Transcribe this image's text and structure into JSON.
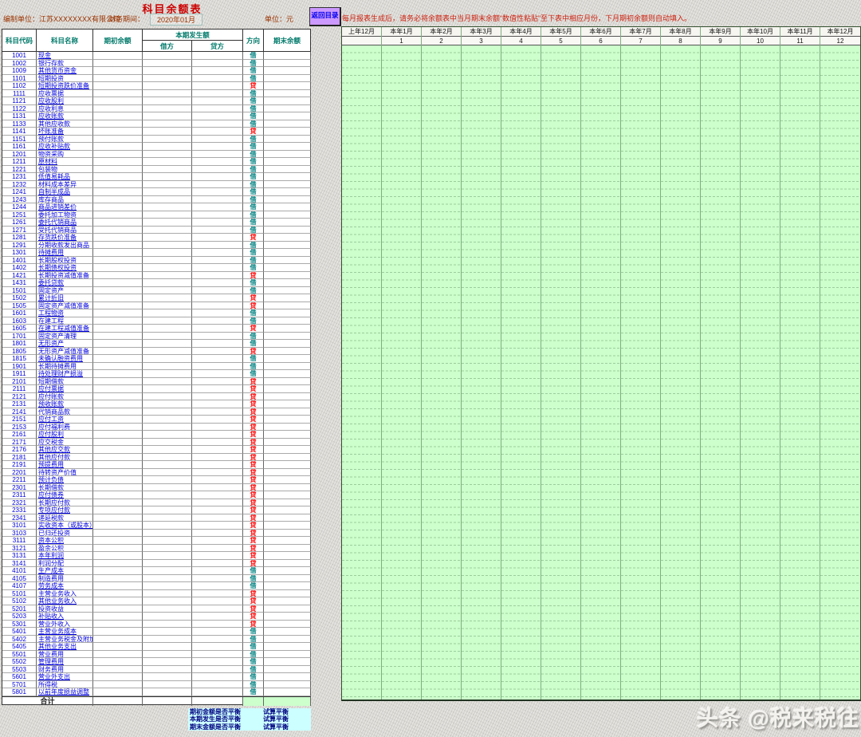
{
  "page_title": "科目余额表",
  "meta": {
    "prepared_label": "编制单位：",
    "company": "江苏XXXXXXXX有限公司",
    "period_label": "财务期间：",
    "period_value": "2020年01月",
    "unit_label": "单位：元"
  },
  "toolbar": {
    "back_button": "返回目录"
  },
  "note": "每月报表生成后，请务必将余额表中当月期末余额“数值性粘贴”至下表中相应月份，下月期初余额则自动填入。",
  "left_table": {
    "headers": {
      "code": "科目代码",
      "name": "科目名称",
      "opening": "期初余额",
      "current": "本期发生额",
      "debit": "借方",
      "credit": "贷方",
      "direction": "方向",
      "closing": "期末余额"
    },
    "total_label": "合计",
    "accounts": [
      {
        "code": "1001",
        "name": "现金",
        "dir": "借"
      },
      {
        "code": "1002",
        "name": "银行存款",
        "dir": "借"
      },
      {
        "code": "1009",
        "name": "其他货币资金",
        "dir": "借"
      },
      {
        "code": "1101",
        "name": "短期投资",
        "dir": "借"
      },
      {
        "code": "1102",
        "name": "短期投资跌价准备",
        "dir": "贷"
      },
      {
        "code": "1111",
        "name": "应收票据",
        "dir": "借"
      },
      {
        "code": "1121",
        "name": "应收股利",
        "dir": "借"
      },
      {
        "code": "1122",
        "name": "应收利息",
        "dir": "借"
      },
      {
        "code": "1131",
        "name": "应收账款",
        "dir": "借"
      },
      {
        "code": "1133",
        "name": "其他应收款",
        "dir": "借"
      },
      {
        "code": "1141",
        "name": "坏账准备",
        "dir": "贷"
      },
      {
        "code": "1151",
        "name": "预付账款",
        "dir": "借"
      },
      {
        "code": "1161",
        "name": "应收补贴款",
        "dir": "借"
      },
      {
        "code": "1201",
        "name": "物资采购",
        "dir": "借"
      },
      {
        "code": "1211",
        "name": "原材料",
        "dir": "借"
      },
      {
        "code": "1221",
        "name": "包装物",
        "dir": "借"
      },
      {
        "code": "1231",
        "name": "低值易耗品",
        "dir": "借"
      },
      {
        "code": "1232",
        "name": "材料成本差异",
        "dir": "借"
      },
      {
        "code": "1241",
        "name": "自制半成品",
        "dir": "借"
      },
      {
        "code": "1243",
        "name": "库存商品",
        "dir": "借"
      },
      {
        "code": "1244",
        "name": "商品进销差价",
        "dir": "借"
      },
      {
        "code": "1251",
        "name": "委托加工物资",
        "dir": "借"
      },
      {
        "code": "1261",
        "name": "委托代销商品",
        "dir": "借"
      },
      {
        "code": "1271",
        "name": "受托代销商品",
        "dir": "借"
      },
      {
        "code": "1281",
        "name": "存货跌价准备",
        "dir": "贷"
      },
      {
        "code": "1291",
        "name": "分期收款发出商品",
        "dir": "借"
      },
      {
        "code": "1301",
        "name": "待摊费用",
        "dir": "借"
      },
      {
        "code": "1401",
        "name": "长期股权投资",
        "dir": "借"
      },
      {
        "code": "1402",
        "name": "长期债权投资",
        "dir": "借"
      },
      {
        "code": "1421",
        "name": "长期投资减值准备",
        "dir": "贷"
      },
      {
        "code": "1431",
        "name": "委托贷款",
        "dir": "借"
      },
      {
        "code": "1501",
        "name": "固定资产",
        "dir": "借"
      },
      {
        "code": "1502",
        "name": "累计折旧",
        "dir": "贷"
      },
      {
        "code": "1505",
        "name": "固定资产减值准备",
        "dir": "贷"
      },
      {
        "code": "1601",
        "name": "工程物资",
        "dir": "借"
      },
      {
        "code": "1603",
        "name": "在建工程",
        "dir": "借"
      },
      {
        "code": "1605",
        "name": "在建工程减值准备",
        "dir": "贷"
      },
      {
        "code": "1701",
        "name": "固定资产清理",
        "dir": "借"
      },
      {
        "code": "1801",
        "name": "无形资产",
        "dir": "借"
      },
      {
        "code": "1805",
        "name": "无形资产减值准备",
        "dir": "贷"
      },
      {
        "code": "1815",
        "name": "未确认融资费用",
        "dir": "借"
      },
      {
        "code": "1901",
        "name": "长期待摊费用",
        "dir": "借"
      },
      {
        "code": "1911",
        "name": "待处理财产损溢",
        "dir": "借"
      },
      {
        "code": "2101",
        "name": "短期借款",
        "dir": "贷"
      },
      {
        "code": "2111",
        "name": "应付票据",
        "dir": "贷"
      },
      {
        "code": "2121",
        "name": "应付账款",
        "dir": "贷"
      },
      {
        "code": "2131",
        "name": "预收账款",
        "dir": "贷"
      },
      {
        "code": "2141",
        "name": "代销商品款",
        "dir": "贷"
      },
      {
        "code": "2151",
        "name": "应付工资",
        "dir": "贷"
      },
      {
        "code": "2153",
        "name": "应付福利费",
        "dir": "贷"
      },
      {
        "code": "2161",
        "name": "应付股利",
        "dir": "贷"
      },
      {
        "code": "2171",
        "name": "应交税金",
        "dir": "贷"
      },
      {
        "code": "2176",
        "name": "其他应交款",
        "dir": "贷"
      },
      {
        "code": "2181",
        "name": "其他应付款",
        "dir": "贷"
      },
      {
        "code": "2191",
        "name": "预提费用",
        "dir": "贷"
      },
      {
        "code": "2201",
        "name": "待转资产价值",
        "dir": "贷"
      },
      {
        "code": "2211",
        "name": "预计负债",
        "dir": "贷"
      },
      {
        "code": "2301",
        "name": "长期借款",
        "dir": "贷"
      },
      {
        "code": "2311",
        "name": "应付债券",
        "dir": "贷"
      },
      {
        "code": "2321",
        "name": "长期应付款",
        "dir": "贷"
      },
      {
        "code": "2331",
        "name": "专项应付款",
        "dir": "贷"
      },
      {
        "code": "2341",
        "name": "递延税款",
        "dir": "贷"
      },
      {
        "code": "3101",
        "name": "实收资本（或股本）",
        "dir": "贷"
      },
      {
        "code": "3103",
        "name": "已归还投资",
        "dir": "贷"
      },
      {
        "code": "3111",
        "name": "资本公积",
        "dir": "贷"
      },
      {
        "code": "3121",
        "name": "盈余公积",
        "dir": "贷"
      },
      {
        "code": "3131",
        "name": "本年利润",
        "dir": "贷"
      },
      {
        "code": "3141",
        "name": "利润分配",
        "dir": "贷"
      },
      {
        "code": "4101",
        "name": "生产成本",
        "dir": "借"
      },
      {
        "code": "4105",
        "name": "制造费用",
        "dir": "借"
      },
      {
        "code": "4107",
        "name": "劳务成本",
        "dir": "借"
      },
      {
        "code": "5101",
        "name": "主营业务收入",
        "dir": "贷"
      },
      {
        "code": "5102",
        "name": "其他业务收入",
        "dir": "贷"
      },
      {
        "code": "5201",
        "name": "投资收益",
        "dir": "贷"
      },
      {
        "code": "5203",
        "name": "补贴收入",
        "dir": "贷"
      },
      {
        "code": "5301",
        "name": "营业外收入",
        "dir": "贷"
      },
      {
        "code": "5401",
        "name": "主营业务成本",
        "dir": "借"
      },
      {
        "code": "5402",
        "name": "主营业务税金及附加",
        "dir": "借"
      },
      {
        "code": "5405",
        "name": "其他业务支出",
        "dir": "借"
      },
      {
        "code": "5501",
        "name": "营业费用",
        "dir": "借"
      },
      {
        "code": "5502",
        "name": "管理费用",
        "dir": "借"
      },
      {
        "code": "5503",
        "name": "财务费用",
        "dir": "借"
      },
      {
        "code": "5601",
        "name": "营业外支出",
        "dir": "借"
      },
      {
        "code": "5701",
        "name": "所得税",
        "dir": "借"
      },
      {
        "code": "5801",
        "name": "以前年度损益调整",
        "dir": "借"
      }
    ]
  },
  "month_table": {
    "columns": [
      {
        "label": "上年12月",
        "num": ""
      },
      {
        "label": "本年1月",
        "num": "1"
      },
      {
        "label": "本年2月",
        "num": "2"
      },
      {
        "label": "本年3月",
        "num": "3"
      },
      {
        "label": "本年4月",
        "num": "4"
      },
      {
        "label": "本年5月",
        "num": "5"
      },
      {
        "label": "本年6月",
        "num": "6"
      },
      {
        "label": "本年7月",
        "num": "7"
      },
      {
        "label": "本年8月",
        "num": "8"
      },
      {
        "label": "本年9月",
        "num": "9"
      },
      {
        "label": "本年10月",
        "num": "10"
      },
      {
        "label": "本年11月",
        "num": "11"
      },
      {
        "label": "本年12月",
        "num": "12"
      }
    ]
  },
  "balance_checks": [
    {
      "label": "期初金额是否平衡",
      "value": "试算平衡"
    },
    {
      "label": "本期发生是否平衡",
      "value": "试算平衡"
    },
    {
      "label": "期末金额是否平衡",
      "value": "试算平衡"
    }
  ],
  "watermark": "头条 @税来税往",
  "colors": {
    "cell_green": "#ccffcc",
    "check_cyan": "#ccffff",
    "button_purple": "#cc99ff",
    "title_red": "#cc0000",
    "meta_brown": "#993300",
    "note_red": "#cc2211",
    "header_teal": "#007a6a",
    "link_blue": "#0000dd",
    "debit_teal": "#008080",
    "credit_red": "#ff0000"
  }
}
